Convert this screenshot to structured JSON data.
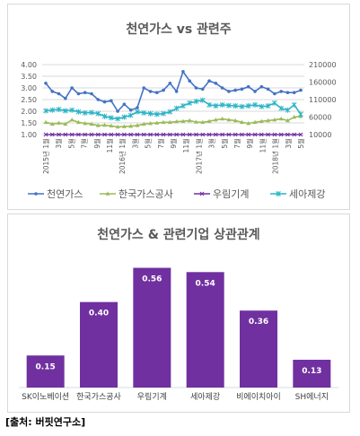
{
  "source": "[출처: 버핏연구소]",
  "colors": {
    "gas": "#4472c4",
    "kogas": "#9bbb59",
    "woorim": "#7030a0",
    "seah": "#2bb4c6",
    "bar": "#7030a0"
  },
  "chart_data": [
    {
      "type": "line",
      "title": "천연가스 vs 관련주",
      "y_left_ticks": [
        "4.00",
        "3.50",
        "3.00",
        "2.50",
        "2.00",
        "1.50",
        "1.00"
      ],
      "y_left_lim": [
        1.0,
        4.0
      ],
      "y_right_ticks": [
        "210000",
        "160000",
        "110000",
        "60000",
        "10000"
      ],
      "y_right_lim": [
        10000,
        210000
      ],
      "x_labels": [
        "2015년 1월",
        "3월",
        "5월",
        "7월",
        "9월",
        "11월",
        "2016년 1월",
        "3월",
        "5월",
        "7월",
        "9월",
        "11월",
        "2017년 1월",
        "3월",
        "5월",
        "7월",
        "9월",
        "11월",
        "2018년 1월",
        "3월",
        "5월"
      ],
      "grid": true,
      "legend": "bottom",
      "series": [
        {
          "name": "천연가스",
          "axis": "left",
          "marker": "circle",
          "color_key": "gas",
          "values": [
            3.2,
            2.85,
            2.75,
            2.55,
            3.0,
            2.75,
            2.8,
            2.75,
            2.5,
            2.4,
            2.45,
            2.0,
            2.3,
            2.05,
            2.15,
            3.0,
            2.85,
            2.8,
            2.9,
            3.2,
            2.85,
            3.7,
            3.3,
            3.0,
            2.95,
            3.3,
            3.2,
            3.0,
            2.85,
            2.9,
            2.95,
            3.05,
            2.85,
            3.05,
            2.95,
            2.75,
            2.85,
            2.8,
            2.8,
            2.9
          ]
        },
        {
          "name": "한국가스공사",
          "axis": "right",
          "marker": "triangle",
          "color_key": "kogas",
          "values": [
            45000,
            40000,
            43000,
            40000,
            52000,
            45000,
            42000,
            40000,
            36000,
            37000,
            35000,
            32000,
            33000,
            34000,
            36000,
            40000,
            42000,
            43000,
            45000,
            45000,
            47000,
            48000,
            50000,
            46000,
            45000,
            48000,
            52000,
            55000,
            52000,
            50000,
            45000,
            42000,
            45000,
            48000,
            50000,
            52000,
            55000,
            50000,
            60000,
            62000
          ]
        },
        {
          "name": "우림기계",
          "axis": "right",
          "marker": "x",
          "color_key": "woorim",
          "values": [
            10000,
            10000,
            10000,
            10000,
            10000,
            10000,
            10000,
            10000,
            10000,
            10000,
            10000,
            10000,
            10000,
            10000,
            10000,
            10000,
            10000,
            10000,
            10000,
            10000,
            10000,
            10000,
            10000,
            10000,
            10000,
            10000,
            10000,
            10000,
            10000,
            10000,
            10000,
            10000,
            10000,
            10000,
            10000,
            10000,
            10000,
            10000,
            10000,
            10000
          ]
        },
        {
          "name": "세아제강",
          "axis": "right",
          "marker": "asterisk",
          "color_key": "seah",
          "values": [
            78000,
            80000,
            82000,
            78000,
            80000,
            75000,
            72000,
            73000,
            70000,
            62000,
            58000,
            55000,
            60000,
            65000,
            75000,
            72000,
            70000,
            68000,
            70000,
            75000,
            85000,
            92000,
            100000,
            105000,
            108000,
            95000,
            92000,
            95000,
            93000,
            92000,
            90000,
            92000,
            95000,
            90000,
            92000,
            100000,
            85000,
            80000,
            95000,
            68000
          ]
        }
      ]
    },
    {
      "type": "bar",
      "title": "천연가스 & 관련기업 상관관계",
      "categories": [
        "SK이노베이션",
        "한국가스공사",
        "우림기계",
        "세아제강",
        "비에이치아이",
        "SH에너지"
      ],
      "values": [
        0.15,
        0.4,
        0.56,
        0.54,
        0.36,
        0.13
      ],
      "value_labels": [
        "0.15",
        "0.40",
        "0.56",
        "0.54",
        "0.36",
        "0.13"
      ],
      "ylim": [
        0,
        0.6
      ]
    }
  ]
}
